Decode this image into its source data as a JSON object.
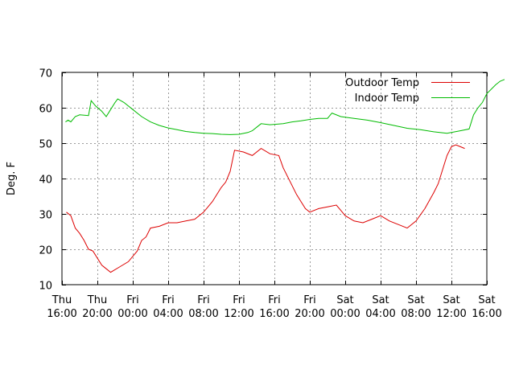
{
  "chart_data": {
    "type": "line",
    "ylabel": "Deg. F",
    "xlabel": "",
    "title": "",
    "ylim": [
      10,
      70
    ],
    "yticks": [
      10,
      20,
      30,
      40,
      50,
      60,
      70
    ],
    "x_range_hours": [
      0,
      48
    ],
    "x_ticks": [
      {
        "day": "Thu",
        "time": "16:00"
      },
      {
        "day": "Thu",
        "time": "20:00"
      },
      {
        "day": "Fri",
        "time": "00:00"
      },
      {
        "day": "Fri",
        "time": "04:00"
      },
      {
        "day": "Fri",
        "time": "08:00"
      },
      {
        "day": "Fri",
        "time": "12:00"
      },
      {
        "day": "Fri",
        "time": "16:00"
      },
      {
        "day": "Fri",
        "time": "20:00"
      },
      {
        "day": "Sat",
        "time": "00:00"
      },
      {
        "day": "Sat",
        "time": "04:00"
      },
      {
        "day": "Sat",
        "time": "08:00"
      },
      {
        "day": "Sat",
        "time": "12:00"
      },
      {
        "day": "Sat",
        "time": "16:00"
      }
    ],
    "grid": true,
    "legend_position": "top-right",
    "series": [
      {
        "name": "Outdoor Temp",
        "color": "#dd0000",
        "points": [
          [
            0.5,
            30.5
          ],
          [
            1.0,
            29.5
          ],
          [
            1.5,
            26.0
          ],
          [
            2.0,
            24.5
          ],
          [
            2.5,
            22.5
          ],
          [
            3.0,
            20.0
          ],
          [
            3.5,
            19.5
          ],
          [
            4.0,
            17.5
          ],
          [
            4.5,
            15.5
          ],
          [
            5.0,
            14.5
          ],
          [
            5.5,
            13.5
          ],
          [
            6.5,
            15.0
          ],
          [
            7.5,
            16.5
          ],
          [
            8.5,
            19.5
          ],
          [
            9.0,
            22.5
          ],
          [
            9.5,
            23.5
          ],
          [
            10.0,
            26.0
          ],
          [
            11.0,
            26.5
          ],
          [
            12.0,
            27.5
          ],
          [
            13.0,
            27.5
          ],
          [
            14.0,
            28.0
          ],
          [
            15.0,
            28.5
          ],
          [
            16.0,
            30.5
          ],
          [
            17.0,
            33.5
          ],
          [
            18.0,
            37.5
          ],
          [
            18.5,
            39.0
          ],
          [
            19.0,
            42.0
          ],
          [
            19.5,
            48.0
          ],
          [
            20.5,
            47.5
          ],
          [
            21.5,
            46.5
          ],
          [
            22.5,
            48.5
          ],
          [
            23.5,
            47.0
          ],
          [
            24.5,
            46.5
          ],
          [
            25.0,
            43.0
          ],
          [
            25.5,
            40.5
          ],
          [
            26.0,
            38.0
          ],
          [
            26.5,
            35.5
          ],
          [
            27.0,
            33.5
          ],
          [
            27.5,
            31.5
          ],
          [
            28.0,
            30.5
          ],
          [
            29.0,
            31.5
          ],
          [
            30.0,
            32.0
          ],
          [
            31.0,
            32.5
          ],
          [
            31.5,
            31.0
          ],
          [
            32.0,
            29.5
          ],
          [
            33.0,
            28.0
          ],
          [
            34.0,
            27.5
          ],
          [
            35.0,
            28.5
          ],
          [
            36.0,
            29.5
          ],
          [
            37.0,
            28.0
          ],
          [
            38.0,
            27.0
          ],
          [
            39.0,
            26.0
          ],
          [
            40.0,
            28.0
          ],
          [
            41.0,
            31.5
          ],
          [
            42.0,
            36.0
          ],
          [
            42.5,
            38.5
          ],
          [
            43.0,
            42.5
          ],
          [
            43.5,
            46.5
          ],
          [
            44.0,
            49.0
          ],
          [
            44.5,
            49.5
          ],
          [
            45.0,
            49.0
          ],
          [
            45.5,
            48.5
          ]
        ]
      },
      {
        "name": "Indoor Temp",
        "color": "#00bb00",
        "points": [
          [
            0.4,
            56.0
          ],
          [
            0.7,
            56.5
          ],
          [
            1.0,
            56.0
          ],
          [
            1.5,
            57.5
          ],
          [
            2.0,
            58.0
          ],
          [
            3.0,
            57.8
          ],
          [
            3.3,
            62.0
          ],
          [
            3.8,
            60.5
          ],
          [
            4.5,
            59.0
          ],
          [
            5.0,
            57.5
          ],
          [
            5.5,
            59.5
          ],
          [
            6.0,
            61.5
          ],
          [
            6.3,
            62.5
          ],
          [
            7.0,
            61.5
          ],
          [
            8.0,
            59.5
          ],
          [
            9.0,
            57.5
          ],
          [
            10.0,
            56.0
          ],
          [
            11.0,
            55.0
          ],
          [
            12.0,
            54.3
          ],
          [
            13.0,
            53.8
          ],
          [
            14.0,
            53.3
          ],
          [
            15.0,
            53.0
          ],
          [
            16.0,
            52.8
          ],
          [
            17.0,
            52.7
          ],
          [
            18.0,
            52.5
          ],
          [
            19.0,
            52.4
          ],
          [
            20.0,
            52.5
          ],
          [
            21.0,
            53.0
          ],
          [
            21.5,
            53.5
          ],
          [
            22.0,
            54.5
          ],
          [
            22.5,
            55.5
          ],
          [
            23.5,
            55.2
          ],
          [
            25.0,
            55.5
          ],
          [
            26.0,
            56.0
          ],
          [
            27.0,
            56.3
          ],
          [
            28.0,
            56.7
          ],
          [
            29.0,
            57.0
          ],
          [
            30.0,
            57.0
          ],
          [
            30.5,
            58.5
          ],
          [
            31.5,
            57.5
          ],
          [
            33.0,
            57.0
          ],
          [
            34.5,
            56.5
          ],
          [
            36.0,
            55.8
          ],
          [
            37.5,
            55.0
          ],
          [
            39.0,
            54.2
          ],
          [
            40.5,
            53.8
          ],
          [
            42.0,
            53.2
          ],
          [
            43.5,
            52.8
          ],
          [
            45.0,
            53.5
          ],
          [
            46.0,
            54.0
          ],
          [
            46.5,
            58.0
          ],
          [
            47.0,
            60.0
          ],
          [
            47.5,
            61.5
          ],
          [
            48.0,
            64.0
          ],
          [
            49.0,
            66.5
          ],
          [
            49.5,
            67.5
          ],
          [
            50.0,
            68.0
          ]
        ]
      }
    ]
  }
}
